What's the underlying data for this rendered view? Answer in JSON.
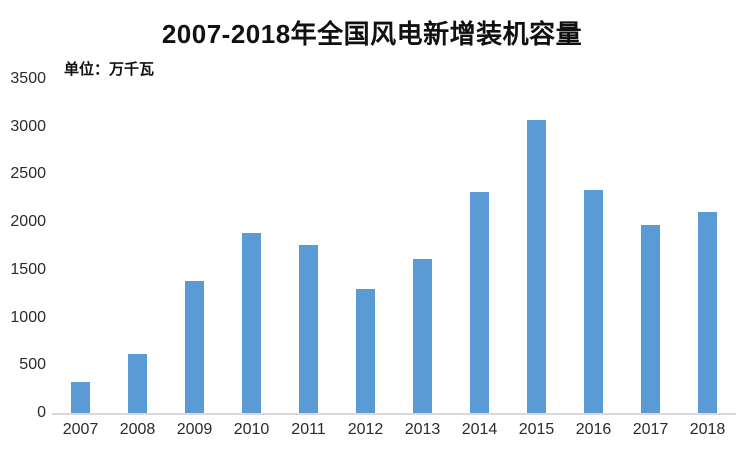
{
  "chart_data": {
    "type": "bar",
    "title": "2007-2018年全国风电新增装机容量",
    "unit_label": "单位：万千瓦",
    "categories": [
      "2007",
      "2008",
      "2009",
      "2010",
      "2011",
      "2012",
      "2013",
      "2014",
      "2015",
      "2016",
      "2017",
      "2018"
    ],
    "values": [
      330,
      620,
      1380,
      1890,
      1763,
      1296,
      1610,
      2320,
      3075,
      2337,
      1966,
      2110
    ],
    "xlabel": "",
    "ylabel": "",
    "ylim": [
      0,
      3500
    ],
    "ytick_interval": 500,
    "ytick_labels_top_down": [
      "3500",
      "3000",
      "2500",
      "2000",
      "1500",
      "1000",
      "500",
      "0"
    ],
    "grid": false,
    "legend_position": "none",
    "bar_color": "#5B9BD5",
    "axis_line_color": "#D9D9D9",
    "text_color": "#2B2B2B",
    "background_color": "#FFFFFF"
  }
}
